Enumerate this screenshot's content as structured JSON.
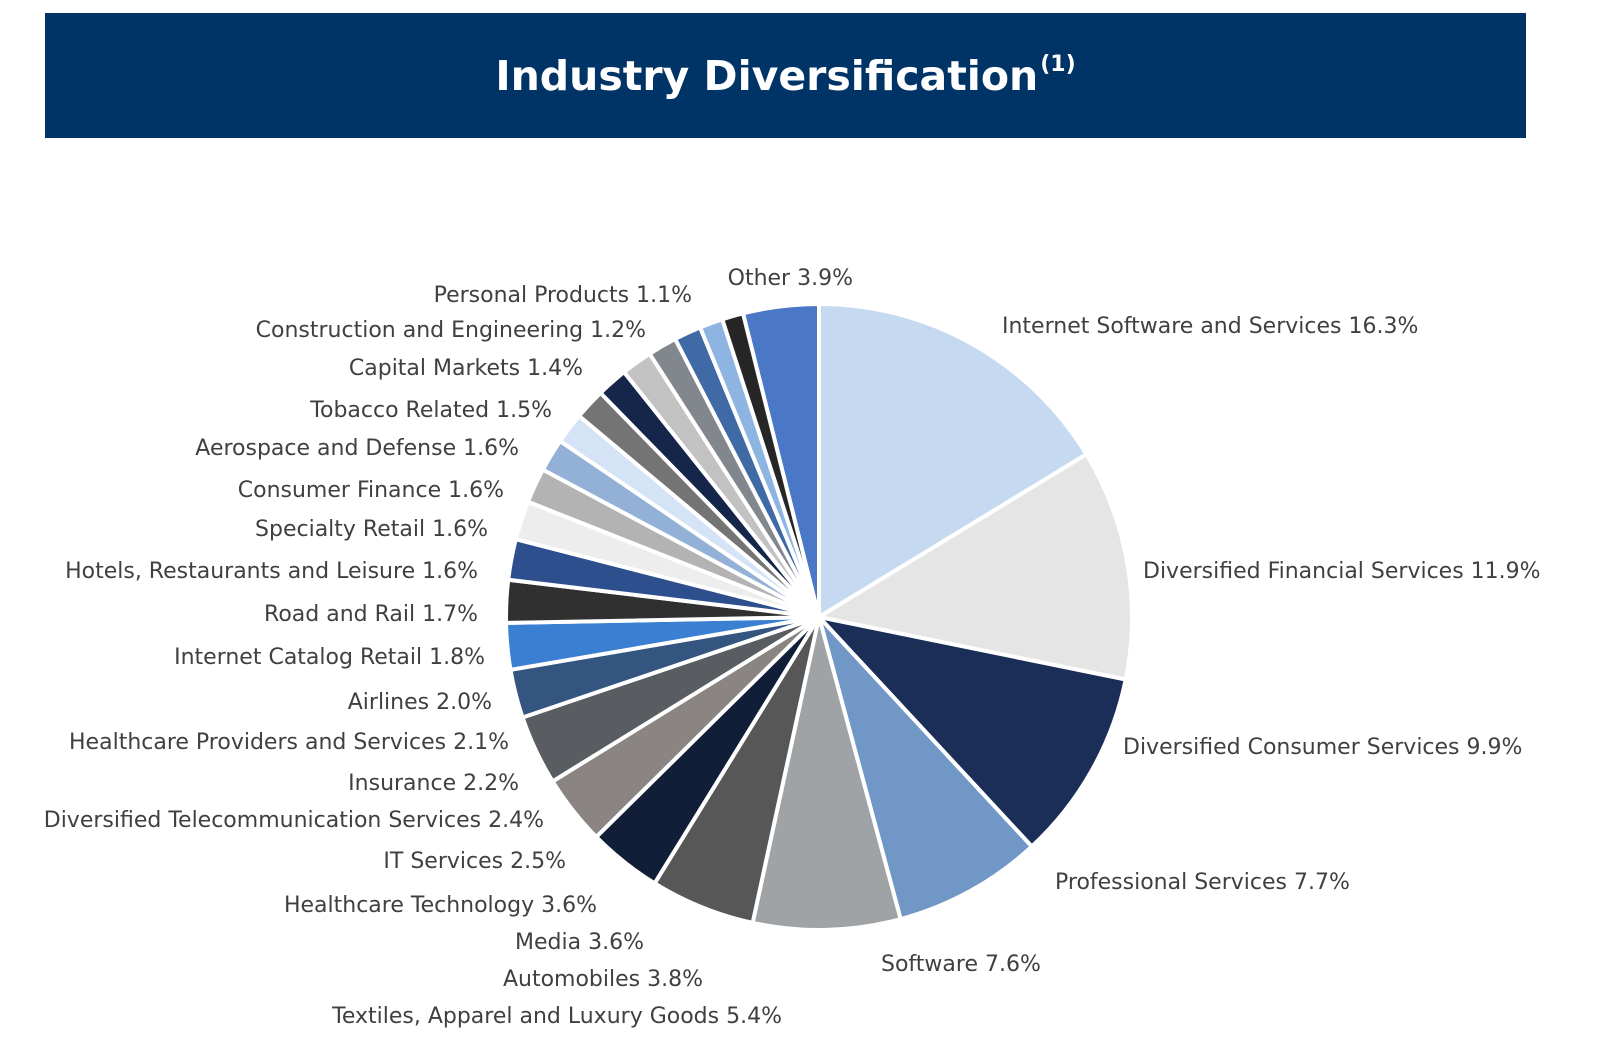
{
  "header": {
    "title": "Industry Diversification",
    "footnote_ref": "(1)"
  },
  "chart_data": {
    "type": "pie",
    "title": "Industry Diversification",
    "slices": [
      {
        "label": "Internet Software and Services",
        "value": 16.3,
        "display": "16.3%",
        "color": "#c5d9f1"
      },
      {
        "label": "Diversified Financial Services",
        "value": 11.9,
        "display": "11.9%",
        "color": "#e5e5e5"
      },
      {
        "label": "Diversified Consumer Services",
        "value": 9.9,
        "display": "9.9%",
        "color": "#1b2e57"
      },
      {
        "label": "Professional Services",
        "value": 7.7,
        "display": "7.7%",
        "color": "#7097c6"
      },
      {
        "label": "Software",
        "value": 7.6,
        "display": "7.6%",
        "color": "#9fa3a6"
      },
      {
        "label": "Textiles, Apparel and Luxury Goods",
        "value": 5.4,
        "display": "5.4%",
        "color": "#575757"
      },
      {
        "label": "Automobiles",
        "value": 3.8,
        "display": "3.8%",
        "color": "#111e38"
      },
      {
        "label": "Media",
        "value": 3.6,
        "display": "3.6%",
        "color": "#8a8583"
      },
      {
        "label": "Healthcare Technology",
        "value": 3.6,
        "display": "3.6%",
        "color": "#595d61"
      },
      {
        "label": "IT Services",
        "value": 2.5,
        "display": "2.5%",
        "color": "#345580"
      },
      {
        "label": "Diversified Telecommunication Services",
        "value": 2.4,
        "display": "2.4%",
        "color": "#3a7fd2"
      },
      {
        "label": "Insurance",
        "value": 2.2,
        "display": "2.2%",
        "color": "#303030"
      },
      {
        "label": "Healthcare Providers and Services",
        "value": 2.1,
        "display": "2.1%",
        "color": "#2e4f8e"
      },
      {
        "label": "Airlines",
        "value": 2.0,
        "display": "2.0%",
        "color": "#ededed"
      },
      {
        "label": "Internet Catalog Retail",
        "value": 1.8,
        "display": "1.8%",
        "color": "#b3b3b3"
      },
      {
        "label": "Road and Rail",
        "value": 1.7,
        "display": "1.7%",
        "color": "#93b1d6"
      },
      {
        "label": "Hotels, Restaurants and Leisure",
        "value": 1.6,
        "display": "1.6%",
        "color": "#d4e3f5"
      },
      {
        "label": "Specialty Retail",
        "value": 1.6,
        "display": "1.6%",
        "color": "#747474"
      },
      {
        "label": "Consumer Finance",
        "value": 1.6,
        "display": "1.6%",
        "color": "#16264a"
      },
      {
        "label": "Aerospace and Defense",
        "value": 1.6,
        "display": "1.6%",
        "color": "#c2c2c2"
      },
      {
        "label": "Tobacco Related",
        "value": 1.5,
        "display": "1.5%",
        "color": "#81878d"
      },
      {
        "label": "Capital Markets",
        "value": 1.4,
        "display": "1.4%",
        "color": "#3f6aa6"
      },
      {
        "label": "Construction and Engineering",
        "value": 1.2,
        "display": "1.2%",
        "color": "#8eb4e2"
      },
      {
        "label": "Personal Products",
        "value": 1.1,
        "display": "1.1%",
        "color": "#262626"
      },
      {
        "label": "Other",
        "value": 3.9,
        "display": "3.9%",
        "color": "#4a78c6"
      }
    ]
  }
}
